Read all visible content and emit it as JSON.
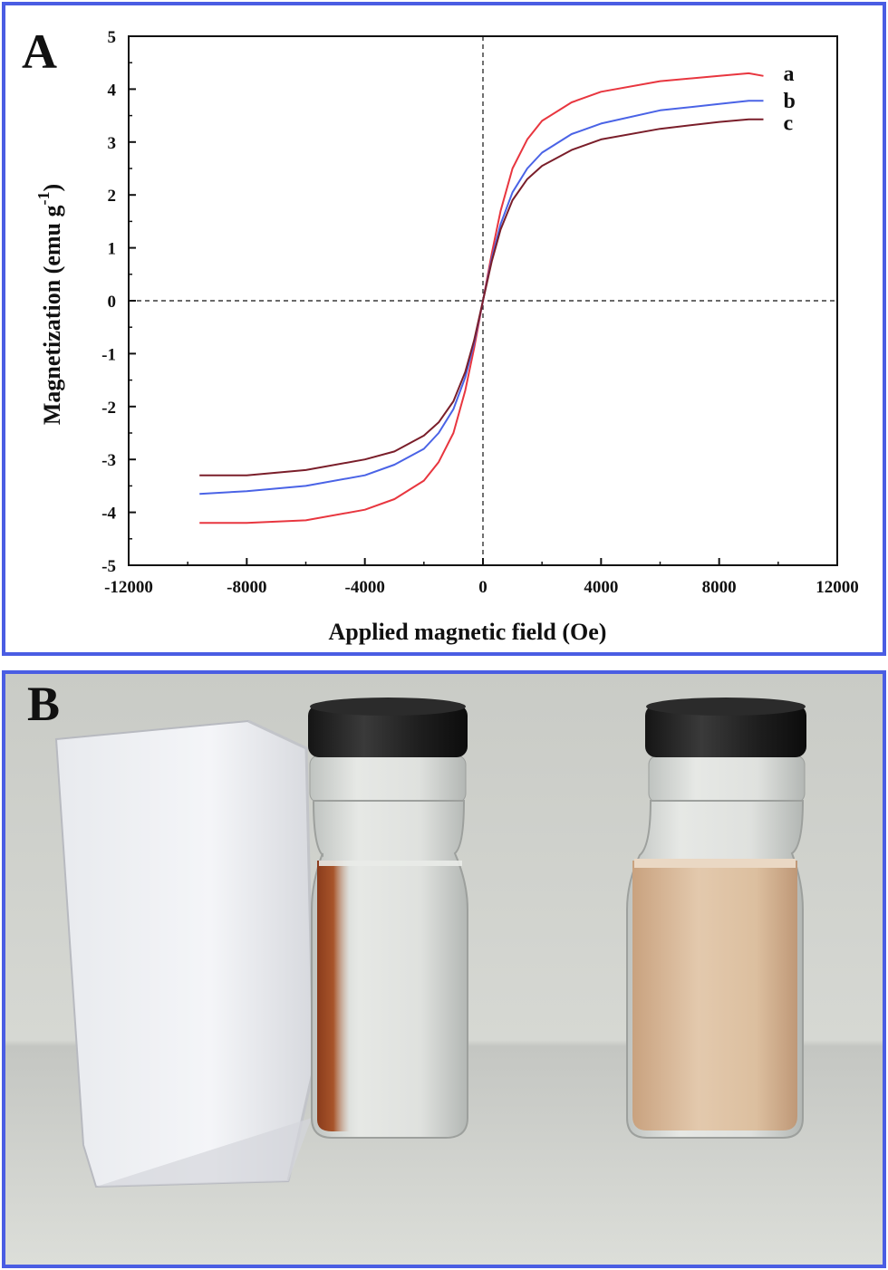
{
  "panel_a": {
    "label": "A"
  },
  "panel_b": {
    "label": "B"
  },
  "chart_data": {
    "type": "line",
    "title": "",
    "xlabel": "Applied magnetic field (Oe)",
    "ylabel_main": "Magnetization (emu g",
    "ylabel_sup": "-1",
    "ylabel_close": ")",
    "xlim": [
      -12000,
      12000
    ],
    "ylim": [
      -5,
      5
    ],
    "xticks": [
      -12000,
      -8000,
      -4000,
      0,
      4000,
      8000,
      12000
    ],
    "yticks": [
      5,
      4,
      3,
      2,
      1,
      0,
      -1,
      -2,
      -3,
      -4,
      -5
    ],
    "grid": false,
    "reference_lines": [
      "x=0 dashed",
      "y=0 dashed"
    ],
    "series": [
      {
        "name": "a",
        "color": "#e8363f",
        "x": [
          -9600,
          -8000,
          -6000,
          -4000,
          -3000,
          -2000,
          -1500,
          -1000,
          -600,
          -300,
          0,
          300,
          600,
          1000,
          1500,
          2000,
          3000,
          4000,
          6000,
          8000,
          9000,
          9500
        ],
        "y": [
          -4.2,
          -4.2,
          -4.15,
          -3.95,
          -3.75,
          -3.4,
          -3.05,
          -2.5,
          -1.7,
          -0.9,
          0,
          0.9,
          1.7,
          2.5,
          3.05,
          3.4,
          3.75,
          3.95,
          4.15,
          4.25,
          4.3,
          4.25
        ]
      },
      {
        "name": "b",
        "color": "#4a63e6",
        "x": [
          -9600,
          -8000,
          -6000,
          -4000,
          -3000,
          -2000,
          -1500,
          -1000,
          -600,
          -300,
          0,
          300,
          600,
          1000,
          1500,
          2000,
          3000,
          4000,
          6000,
          8000,
          9000,
          9500
        ],
        "y": [
          -3.65,
          -3.6,
          -3.5,
          -3.3,
          -3.1,
          -2.8,
          -2.5,
          -2.05,
          -1.45,
          -0.8,
          0,
          0.8,
          1.45,
          2.05,
          2.5,
          2.8,
          3.15,
          3.35,
          3.6,
          3.72,
          3.78,
          3.78
        ]
      },
      {
        "name": "c",
        "color": "#7a1e2a",
        "x": [
          -9600,
          -8000,
          -6000,
          -4000,
          -3000,
          -2000,
          -1500,
          -1000,
          -600,
          -300,
          0,
          300,
          600,
          1000,
          1500,
          2000,
          3000,
          4000,
          6000,
          8000,
          9000,
          9500
        ],
        "y": [
          -3.3,
          -3.3,
          -3.2,
          -3.0,
          -2.85,
          -2.55,
          -2.3,
          -1.9,
          -1.35,
          -0.75,
          0,
          0.75,
          1.35,
          1.9,
          2.3,
          2.55,
          2.85,
          3.05,
          3.25,
          3.38,
          3.43,
          3.43
        ]
      }
    ]
  }
}
